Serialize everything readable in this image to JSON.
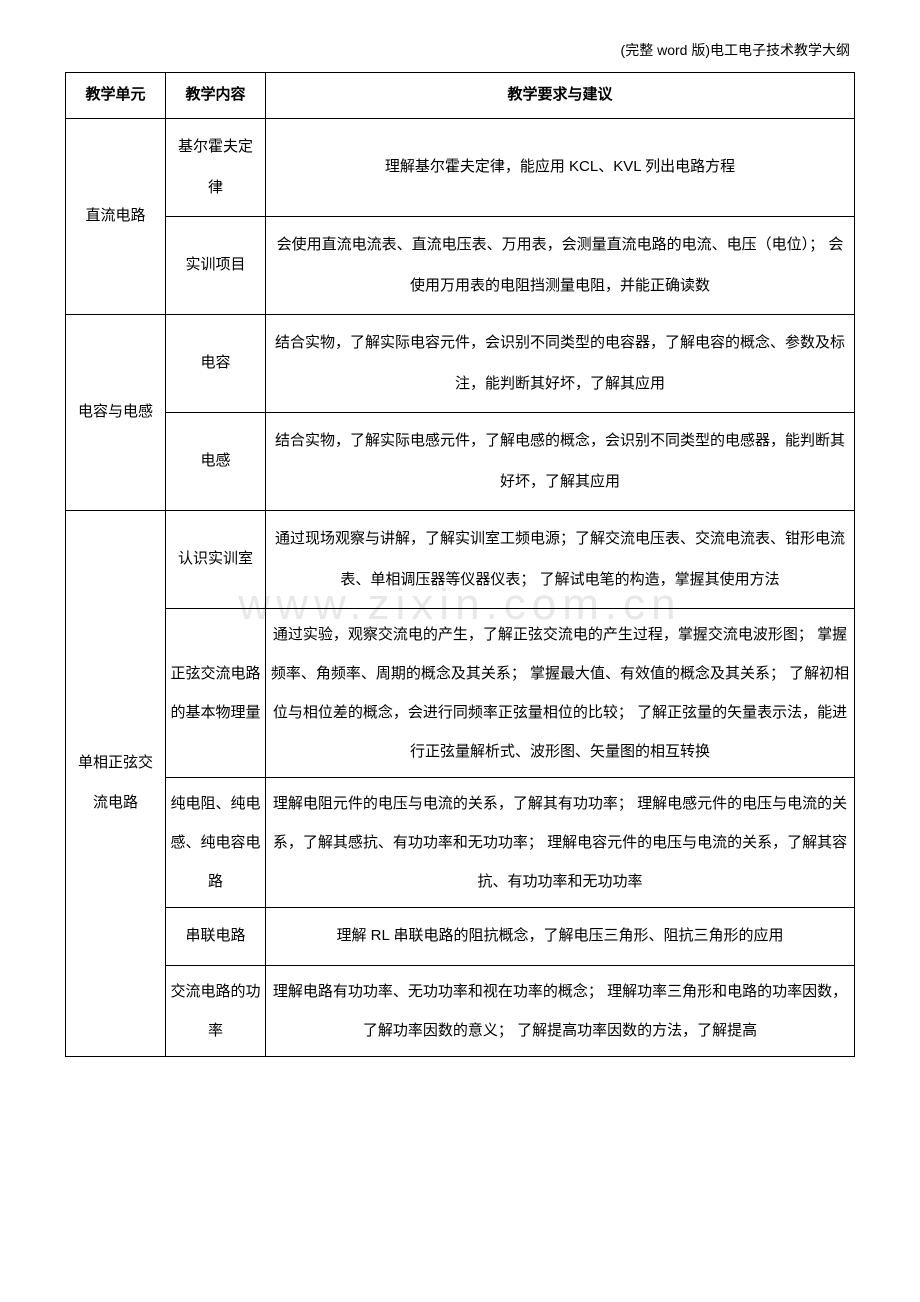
{
  "header": "(完整 word 版)电工电子技术教学大纲",
  "watermark": "www.zixin.com.cn",
  "table": {
    "headers": [
      "教学单元",
      "教学内容",
      "教学要求与建议"
    ],
    "rows": [
      {
        "unit": "直流电路",
        "unitRowspan": 2,
        "content": "基尔霍夫定律",
        "requirement": "理解基尔霍夫定律，能应用 KCL、KVL 列出电路方程"
      },
      {
        "content": "实训项目",
        "requirement": "会使用直流电流表、直流电压表、万用表，会测量直流电路的电流、电压（电位）； 会使用万用表的电阻挡测量电阻，并能正确读数"
      },
      {
        "unit": "电容与电感",
        "unitRowspan": 2,
        "content": "电容",
        "requirement": "结合实物，了解实际电容元件，会识别不同类型的电容器，了解电容的概念、参数及标注，能判断其好坏，了解其应用"
      },
      {
        "content": "电感",
        "requirement": "结合实物，了解实际电感元件，了解电感的概念，会识别不同类型的电感器，能判断其好坏，了解其应用"
      },
      {
        "unit": "单相正弦交流电路",
        "unitRowspan": 5,
        "content": "认识实训室",
        "requirement": "通过现场观察与讲解，了解实训室工频电源；了解交流电压表、交流电流表、钳形电流表、单相调压器等仪器仪表； 了解试电笔的构造，掌握其使用方法"
      },
      {
        "content": "正弦交流电路的基本物理量",
        "requirement": "通过实验，观察交流电的产生，了解正弦交流电的产生过程，掌握交流电波形图； 掌握频率、角频率、周期的概念及其关系； 掌握最大值、有效值的概念及其关系； 了解初相位与相位差的概念，会进行同频率正弦量相位的比较； 了解正弦量的矢量表示法，能进行正弦量解析式、波形图、矢量图的相互转换"
      },
      {
        "content": "纯电阻、纯电感、纯电容电路",
        "requirement": "理解电阻元件的电压与电流的关系，了解其有功功率； 理解电感元件的电压与电流的关系，了解其感抗、有功功率和无功功率； 理解电容元件的电压与电流的关系，了解其容抗、有功功率和无功功率"
      },
      {
        "content": "串联电路",
        "requirement": "理解 RL 串联电路的阻抗概念，了解电压三角形、阻抗三角形的应用"
      },
      {
        "content": "交流电路的功率",
        "requirement": "理解电路有功功率、无功功率和视在功率的概念； 理解功率三角形和电路的功率因数，了解功率因数的意义； 了解提高功率因数的方法，了解提高"
      }
    ]
  }
}
